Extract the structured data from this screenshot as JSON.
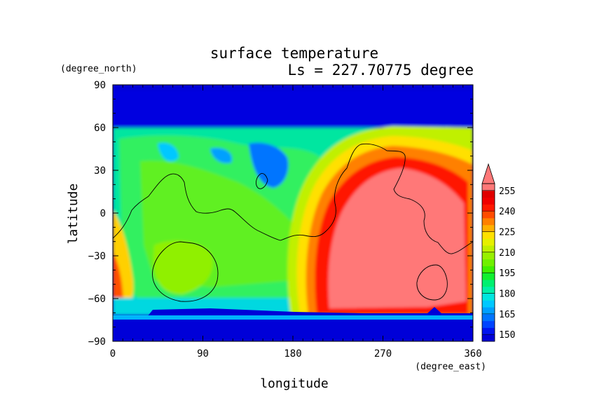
{
  "chart_data": {
    "type": "heatmap",
    "title": "surface temperature",
    "subtitle": "Ls = 227.70775 degree",
    "xlabel": "longitude",
    "ylabel": "latitude",
    "x_unit": "(degree_east)",
    "y_unit": "(degree_north)",
    "xlim": [
      0,
      360
    ],
    "ylim": [
      -90,
      90
    ],
    "x_ticks": [
      "0",
      "90",
      "180",
      "270",
      "360"
    ],
    "y_ticks": [
      "90",
      "60",
      "30",
      "0",
      "−30",
      "−60",
      "−90"
    ],
    "colorbar": {
      "labels": [
        "255",
        "240",
        "225",
        "210",
        "195",
        "180",
        "165",
        "150"
      ],
      "levels": [
        145,
        150,
        155,
        160,
        165,
        170,
        175,
        180,
        185,
        190,
        195,
        200,
        205,
        210,
        215,
        220,
        225,
        230,
        235,
        240,
        245,
        250,
        255,
        260
      ],
      "colors": [
        "#0000d8",
        "#0014f0",
        "#0044ff",
        "#0074ff",
        "#00a0ff",
        "#00c8ff",
        "#00e6e0",
        "#00f0a8",
        "#00f070",
        "#10f030",
        "#40f000",
        "#70f000",
        "#98f000",
        "#c0f000",
        "#e6f000",
        "#ffe000",
        "#ffb000",
        "#ff8000",
        "#ff4c00",
        "#ff1800",
        "#f00000",
        "#e00000",
        "#ff7878"
      ],
      "extend": "max"
    }
  }
}
